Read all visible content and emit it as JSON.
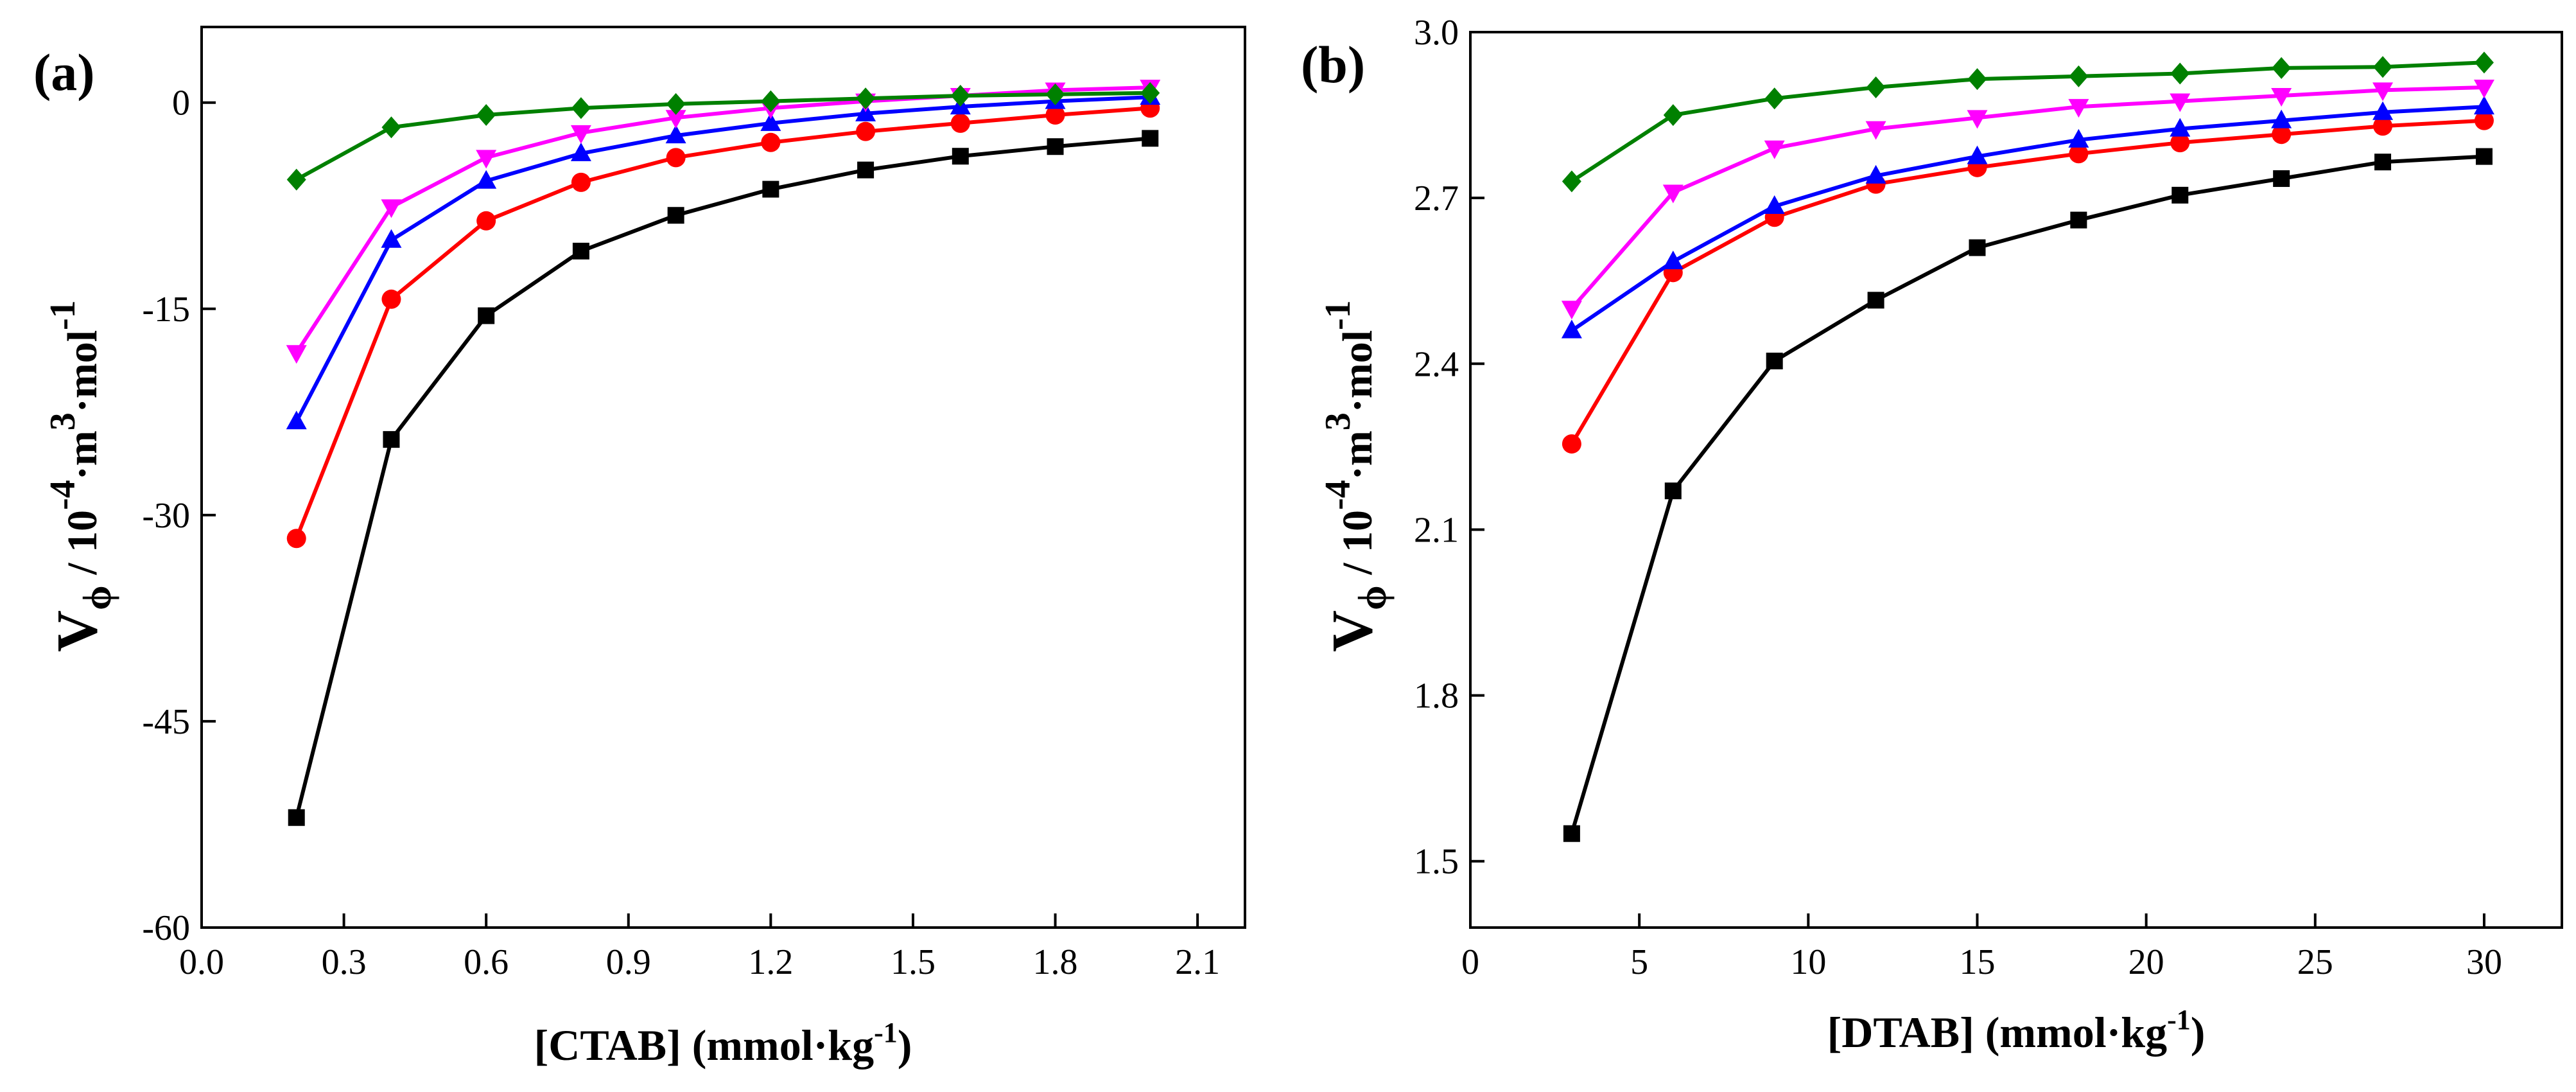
{
  "chart_data": [
    {
      "type": "line",
      "panel_label": "(a)",
      "xlabel_main": "[CTAB] (mmol·kg",
      "xlabel_sup": "-1",
      "xlabel_end": ")",
      "ylabel": {
        "v": "V",
        "sub": "ϕ",
        "mid": " / 10",
        "sup1": "-4",
        "mid2": "·m",
        "sup2": "3",
        "mid3": "·mol",
        "sup3": "-1"
      },
      "xlim": [
        0.0,
        2.2
      ],
      "ylim": [
        -60,
        5.5
      ],
      "xticks": [
        0.0,
        0.3,
        0.6,
        0.9,
        1.2,
        1.5,
        1.8,
        2.1
      ],
      "xtick_labels": [
        "0.0",
        "0.3",
        "0.6",
        "0.9",
        "1.2",
        "1.5",
        "1.8",
        "2.1"
      ],
      "yticks": [
        0,
        -15,
        -30,
        -45,
        -60
      ],
      "ytick_labels": [
        "0",
        "-15",
        "-30",
        "-45",
        "-60"
      ],
      "x": [
        0.2,
        0.4,
        0.6,
        0.8,
        1.0,
        1.2,
        1.4,
        1.6,
        1.8,
        2.0
      ],
      "series": [
        {
          "name": "black",
          "color": "#000000",
          "marker": "square",
          "values": [
            -52.0,
            -24.5,
            -15.5,
            -10.8,
            -8.2,
            -6.3,
            -4.9,
            -3.9,
            -3.2,
            -2.6
          ]
        },
        {
          "name": "red",
          "color": "#ff0000",
          "marker": "circle",
          "values": [
            -31.7,
            -14.3,
            -8.6,
            -5.8,
            -4.0,
            -2.9,
            -2.1,
            -1.5,
            -0.9,
            -0.4
          ]
        },
        {
          "name": "blue",
          "color": "#0000ff",
          "marker": "triangle-up",
          "values": [
            -23.2,
            -10.0,
            -5.7,
            -3.7,
            -2.4,
            -1.5,
            -0.8,
            -0.3,
            0.1,
            0.4
          ]
        },
        {
          "name": "magenta",
          "color": "#ff00ff",
          "marker": "triangle-down",
          "values": [
            -18.2,
            -7.6,
            -4.0,
            -2.2,
            -1.1,
            -0.4,
            0.1,
            0.5,
            0.9,
            1.1
          ]
        },
        {
          "name": "green",
          "color": "#008000",
          "marker": "diamond",
          "values": [
            -5.6,
            -1.8,
            -0.9,
            -0.4,
            -0.1,
            0.1,
            0.3,
            0.5,
            0.6,
            0.7
          ]
        }
      ]
    },
    {
      "type": "line",
      "panel_label": "(b)",
      "xlabel_main": "[DTAB] (mmol·kg",
      "xlabel_sup": "-1",
      "xlabel_end": ")",
      "ylabel": {
        "v": "V",
        "sub": "ϕ",
        "mid": " / 10",
        "sup1": "-4",
        "mid2": "·m",
        "sup2": "3",
        "mid3": "·mol",
        "sup3": "-1"
      },
      "xlim": [
        0,
        32.3
      ],
      "ylim": [
        1.38,
        3.0
      ],
      "xticks": [
        0,
        5,
        10,
        15,
        20,
        25,
        30
      ],
      "xtick_labels": [
        "0",
        "5",
        "10",
        "15",
        "20",
        "25",
        "30"
      ],
      "yticks": [
        1.5,
        1.8,
        2.1,
        2.4,
        2.7,
        3.0
      ],
      "ytick_labels": [
        "1.5",
        "1.8",
        "2.1",
        "2.4",
        "2.7",
        "3.0"
      ],
      "x": [
        3,
        6,
        9,
        12,
        15,
        18,
        21,
        24,
        27,
        30
      ],
      "series": [
        {
          "name": "black",
          "color": "#000000",
          "marker": "square",
          "values": [
            1.55,
            2.17,
            2.405,
            2.515,
            2.61,
            2.66,
            2.705,
            2.735,
            2.765,
            2.775
          ]
        },
        {
          "name": "red",
          "color": "#ff0000",
          "marker": "circle",
          "values": [
            2.255,
            2.565,
            2.665,
            2.725,
            2.755,
            2.78,
            2.8,
            2.815,
            2.83,
            2.84
          ]
        },
        {
          "name": "blue",
          "color": "#0000ff",
          "marker": "triangle-up",
          "values": [
            2.46,
            2.585,
            2.685,
            2.74,
            2.775,
            2.805,
            2.825,
            2.84,
            2.855,
            2.865
          ]
        },
        {
          "name": "magenta",
          "color": "#ff00ff",
          "marker": "triangle-down",
          "values": [
            2.5,
            2.71,
            2.79,
            2.825,
            2.845,
            2.865,
            2.875,
            2.885,
            2.895,
            2.9
          ]
        },
        {
          "name": "green",
          "color": "#008000",
          "marker": "diamond",
          "values": [
            2.73,
            2.85,
            2.88,
            2.9,
            2.915,
            2.92,
            2.925,
            2.935,
            2.937,
            2.945
          ]
        }
      ]
    }
  ]
}
